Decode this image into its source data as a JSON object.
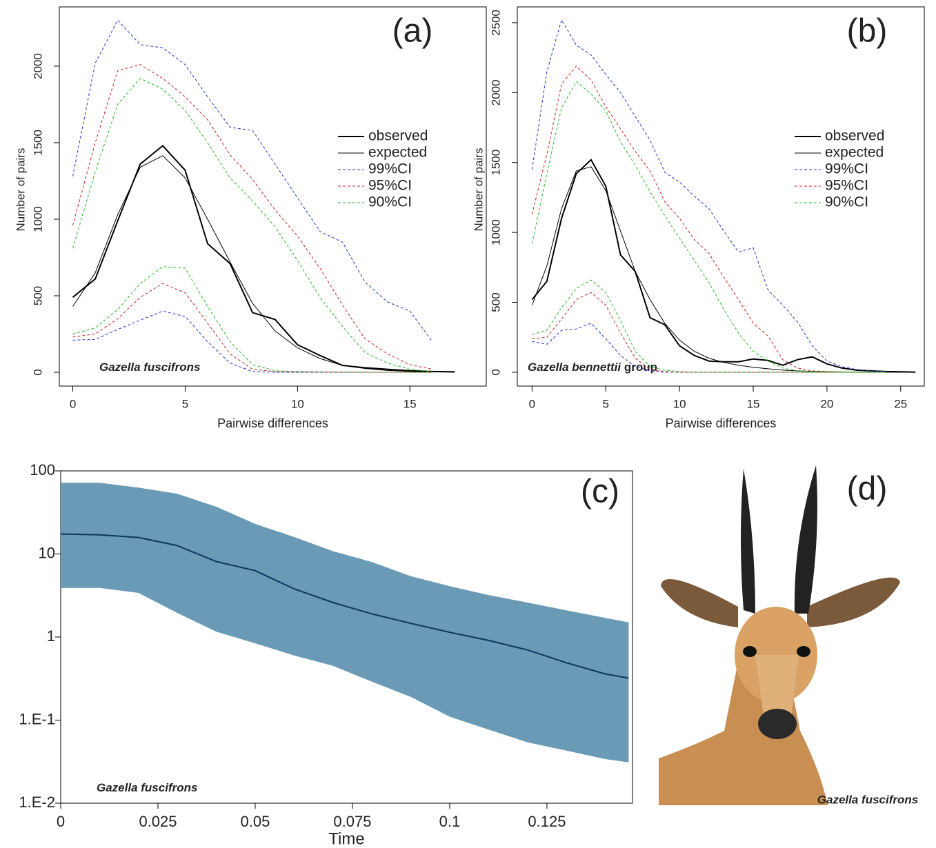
{
  "chart_data": [
    {
      "type": "line",
      "label": "(a)",
      "xlabel": "Pairwise differences",
      "ylabel": "Number of pairs",
      "annotation": [
        "Gazella fuscifrons"
      ],
      "x": [
        0,
        1,
        2,
        3,
        4,
        5,
        6,
        7,
        8,
        9,
        10,
        11,
        12,
        13,
        14,
        15,
        16,
        17
      ],
      "xlim": [
        -0.6,
        18.4
      ],
      "xticks": [
        0,
        5,
        10,
        15
      ],
      "ylim": [
        -90,
        2387
      ],
      "yticks": [
        0,
        500,
        1000,
        1500,
        2000
      ],
      "legend": "right",
      "series": [
        {
          "name": "observed",
          "color": "#000000",
          "style": "solid",
          "width": 2,
          "values": [
            490,
            610,
            990,
            1360,
            1480,
            1320,
            840,
            710,
            390,
            345,
            180,
            110,
            45,
            30,
            20,
            10,
            5,
            3
          ]
        },
        {
          "name": "expected",
          "color": "#000000",
          "style": "solid",
          "width": 1,
          "values": [
            430,
            650,
            1030,
            1340,
            1415,
            1270,
            1000,
            720,
            450,
            270,
            160,
            90,
            45,
            25,
            12,
            6,
            3,
            1
          ]
        },
        {
          "name": "99%CI",
          "color": "#2233cc",
          "style": "dashed",
          "width": 1,
          "values": [
            1280,
            2020,
            2300,
            2140,
            2120,
            2010,
            1800,
            1600,
            1580,
            1360,
            1140,
            920,
            850,
            590,
            460,
            400,
            200,
            null
          ],
          "lower": [
            210,
            215,
            280,
            340,
            400,
            365,
            200,
            60,
            5,
            0,
            0,
            0,
            0,
            0,
            0,
            0,
            0,
            null
          ]
        },
        {
          "name": "95%CI",
          "color": "#cc2222",
          "style": "dashed",
          "width": 1,
          "values": [
            960,
            1500,
            1970,
            2010,
            1920,
            1800,
            1650,
            1420,
            1260,
            1060,
            890,
            680,
            440,
            220,
            120,
            50,
            20,
            null
          ],
          "lower": [
            230,
            250,
            350,
            490,
            580,
            520,
            320,
            120,
            20,
            5,
            3,
            2,
            1,
            0,
            0,
            0,
            0,
            null
          ]
        },
        {
          "name": "90%CI",
          "color": "#22bb22",
          "style": "dashed",
          "width": 1,
          "values": [
            810,
            1310,
            1750,
            1920,
            1850,
            1710,
            1500,
            1270,
            1120,
            950,
            730,
            490,
            300,
            130,
            60,
            20,
            5,
            null
          ],
          "lower": [
            250,
            290,
            410,
            580,
            690,
            680,
            430,
            200,
            50,
            10,
            5,
            3,
            2,
            1,
            0,
            0,
            0,
            null
          ]
        }
      ]
    },
    {
      "type": "line",
      "label": "(b)",
      "xlabel": "Pairwise differences",
      "ylabel": "Number of pairs",
      "annotation": [
        "Gazella bennettii",
        "group"
      ],
      "x": [
        0,
        1,
        2,
        3,
        4,
        5,
        6,
        7,
        8,
        9,
        10,
        11,
        12,
        13,
        14,
        15,
        16,
        17,
        18,
        19,
        20,
        21,
        22,
        23,
        24,
        25,
        26
      ],
      "xlim": [
        -1,
        26.6
      ],
      "xticks": [
        0,
        5,
        10,
        15,
        20,
        25
      ],
      "ylim": [
        -99,
        2613
      ],
      "yticks": [
        0,
        500,
        1000,
        1500,
        2000,
        2500
      ],
      "legend": "right",
      "series": [
        {
          "name": "observed",
          "color": "#000000",
          "style": "solid",
          "width": 2,
          "values": [
            520,
            650,
            1100,
            1420,
            1520,
            1330,
            840,
            720,
            390,
            340,
            190,
            120,
            80,
            75,
            75,
            95,
            85,
            50,
            90,
            110,
            60,
            30,
            15,
            10,
            5,
            3,
            1
          ]
        },
        {
          "name": "expected",
          "color": "#000000",
          "style": "solid",
          "width": 1,
          "values": [
            480,
            760,
            1170,
            1440,
            1470,
            1300,
            1010,
            720,
            520,
            350,
            230,
            150,
            100,
            70,
            50,
            35,
            25,
            15,
            10,
            6,
            4,
            2,
            1,
            1,
            0,
            0,
            0
          ]
        },
        {
          "name": "99%CI",
          "color": "#2233cc",
          "style": "dashed",
          "width": 1,
          "values": [
            1450,
            2150,
            2520,
            2340,
            2270,
            2130,
            2000,
            1830,
            1660,
            1430,
            1360,
            1260,
            1170,
            1010,
            860,
            890,
            590,
            480,
            360,
            190,
            80,
            40,
            20,
            10,
            5,
            null,
            null
          ],
          "lower": [
            220,
            200,
            300,
            310,
            350,
            240,
            120,
            40,
            10,
            0,
            0,
            0,
            0,
            0,
            0,
            0,
            0,
            0,
            0,
            0,
            0,
            0,
            0,
            0,
            0,
            null,
            null
          ]
        },
        {
          "name": "95%CI",
          "color": "#cc2222",
          "style": "dashed",
          "width": 1,
          "values": [
            1130,
            1560,
            2060,
            2190,
            2090,
            1900,
            1740,
            1580,
            1440,
            1220,
            1100,
            950,
            850,
            680,
            520,
            350,
            260,
            90,
            30,
            10,
            5,
            2,
            1,
            0,
            0,
            null,
            null
          ],
          "lower": [
            240,
            250,
            380,
            520,
            570,
            480,
            280,
            100,
            20,
            5,
            0,
            0,
            0,
            0,
            0,
            0,
            0,
            0,
            0,
            0,
            0,
            0,
            0,
            0,
            0,
            null,
            null
          ]
        },
        {
          "name": "90%CI",
          "color": "#22bb22",
          "style": "dashed",
          "width": 1,
          "values": [
            920,
            1420,
            1890,
            2080,
            1990,
            1870,
            1650,
            1480,
            1290,
            1120,
            960,
            800,
            640,
            450,
            280,
            150,
            80,
            30,
            10,
            5,
            2,
            0,
            0,
            0,
            0,
            null,
            null
          ],
          "lower": [
            270,
            300,
            460,
            600,
            660,
            570,
            370,
            150,
            40,
            15,
            5,
            0,
            0,
            0,
            0,
            0,
            0,
            0,
            0,
            0,
            0,
            0,
            0,
            0,
            0,
            null,
            null
          ]
        }
      ]
    },
    {
      "type": "area",
      "label": "(c)",
      "xlabel": "Time",
      "annotation": [
        "Gazella fuscifrons"
      ],
      "log_y": true,
      "color": "#0d3561",
      "band_color": "#6a9ab5",
      "x": [
        0,
        0.01,
        0.02,
        0.03,
        0.04,
        0.05,
        0.06,
        0.07,
        0.08,
        0.09,
        0.1,
        0.11,
        0.12,
        0.13,
        0.14,
        0.146
      ],
      "values": [
        17.4,
        17,
        15.8,
        12.6,
        8.1,
        6.3,
        3.8,
        2.6,
        1.9,
        1.46,
        1.14,
        0.91,
        0.7,
        0.49,
        0.36,
        0.32
      ],
      "upper": [
        72,
        72,
        63,
        53,
        37,
        23,
        16,
        10.8,
        8,
        5.4,
        4.1,
        3.2,
        2.6,
        2.1,
        1.7,
        1.5
      ],
      "lower": [
        3.9,
        3.9,
        3.4,
        1.95,
        1.16,
        0.84,
        0.6,
        0.45,
        0.29,
        0.19,
        0.11,
        0.077,
        0.054,
        0.043,
        0.034,
        0.031
      ],
      "xlim": [
        0,
        0.147
      ],
      "xticks": [
        0,
        0.025,
        0.05,
        0.075,
        0.1,
        0.125
      ],
      "ylim": [
        0.01,
        100
      ],
      "yticks": [
        {
          "value": 0.01,
          "label": "1.E-2"
        },
        {
          "value": 0.1,
          "label": "1.E-1"
        },
        1,
        10,
        100
      ]
    }
  ],
  "panel_d": {
    "label": "(d)",
    "caption": "Gazella fuscifrons"
  }
}
